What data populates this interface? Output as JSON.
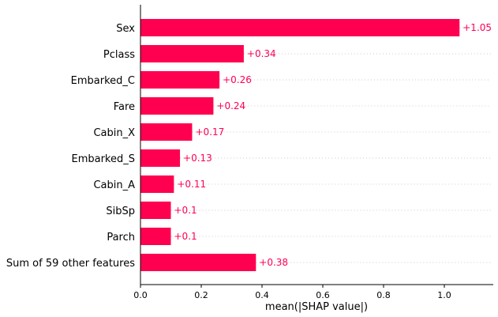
{
  "chart_data": {
    "type": "bar",
    "orientation": "horizontal",
    "categories": [
      "Sex",
      "Pclass",
      "Embarked_C",
      "Fare",
      "Cabin_X",
      "Embarked_S",
      "Cabin_A",
      "SibSp",
      "Parch",
      "Sum of 59 other features"
    ],
    "values": [
      1.05,
      0.34,
      0.26,
      0.24,
      0.17,
      0.13,
      0.11,
      0.1,
      0.1,
      0.38
    ],
    "value_labels": [
      "+1.05",
      "+0.34",
      "+0.26",
      "+0.24",
      "+0.17",
      "+0.13",
      "+0.11",
      "+0.1",
      "+0.1",
      "+0.38"
    ],
    "xlabel": "mean(|SHAP value|)",
    "ylabel": "",
    "xlim": [
      0,
      1.16
    ],
    "xticks": [
      0.0,
      0.2,
      0.4,
      0.6,
      0.8,
      1.0
    ],
    "xtick_labels": [
      "0.0",
      "0.2",
      "0.4",
      "0.6",
      "0.8",
      "1.0"
    ],
    "grid": "dotted horizontal guide lines per row",
    "colors": {
      "bar": "#ff0051",
      "label": "#ff0051",
      "axis": "#000000",
      "guide": "#cccccc"
    }
  }
}
